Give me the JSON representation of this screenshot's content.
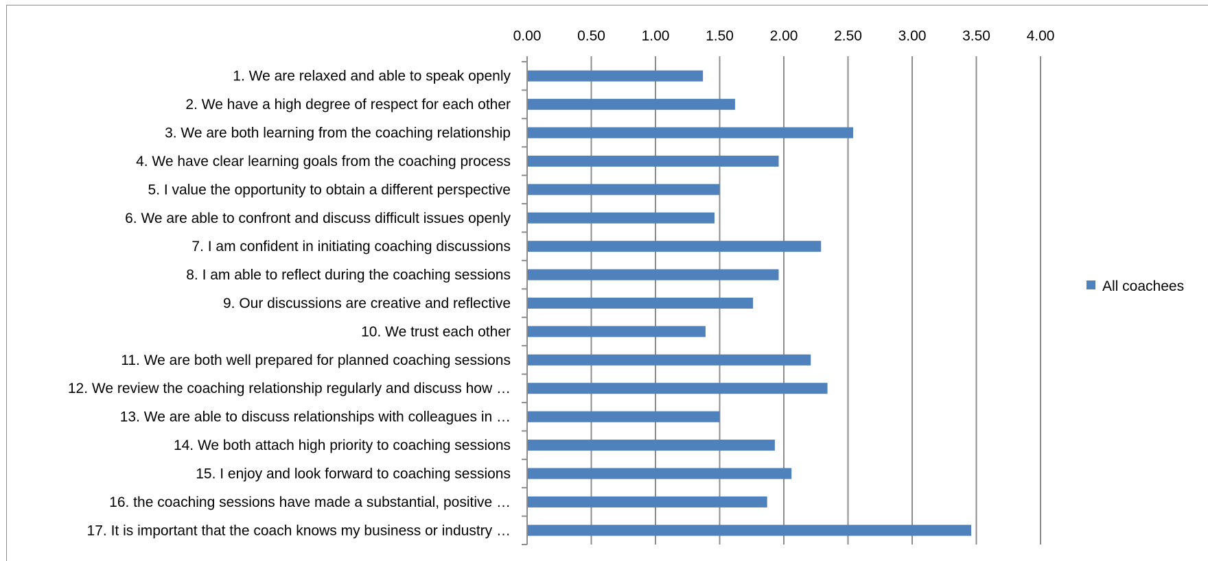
{
  "chart_data": {
    "type": "bar",
    "orientation": "horizontal",
    "title": "",
    "xlabel": "",
    "ylabel": "",
    "xlim": [
      0,
      4
    ],
    "x_ticks": [
      "0.00",
      "0.50",
      "1.00",
      "1.50",
      "2.00",
      "2.50",
      "3.00",
      "3.50",
      "4.00"
    ],
    "x_axis_position": "top",
    "grid": true,
    "legend": {
      "position": "right",
      "entries": [
        "All coachees"
      ]
    },
    "categories": [
      "1.  We are relaxed and able to speak openly",
      "2.  We have a high degree of respect for each other",
      "3.  We are both learning from the coaching relationship",
      "4.  We have clear learning goals from the coaching process",
      "5.  I value the opportunity to obtain a different perspective",
      "6.  We are able to confront and discuss difficult issues openly",
      "7.  I am confident in initiating coaching discussions",
      "8.  I am able to reflect during the coaching sessions",
      "9.  Our discussions are creative and reflective",
      "10. We trust each other",
      "11. We are both well prepared for planned coaching sessions",
      "12.  We review the coaching relationship regularly and discuss how …",
      "13.  We are able to discuss relationships with colleagues in …",
      "14. We both attach high priority to coaching sessions",
      "15. I enjoy and look forward to coaching sessions",
      "16. the coaching sessions have made a substantial, positive …",
      "17. It is important that the coach knows my business or industry …"
    ],
    "series": [
      {
        "name": "All coachees",
        "color": "#4f81bd",
        "values": [
          1.37,
          1.62,
          2.54,
          1.96,
          1.5,
          1.46,
          2.29,
          1.96,
          1.76,
          1.39,
          2.21,
          2.34,
          1.5,
          1.93,
          2.06,
          1.87,
          3.46
        ]
      }
    ]
  }
}
